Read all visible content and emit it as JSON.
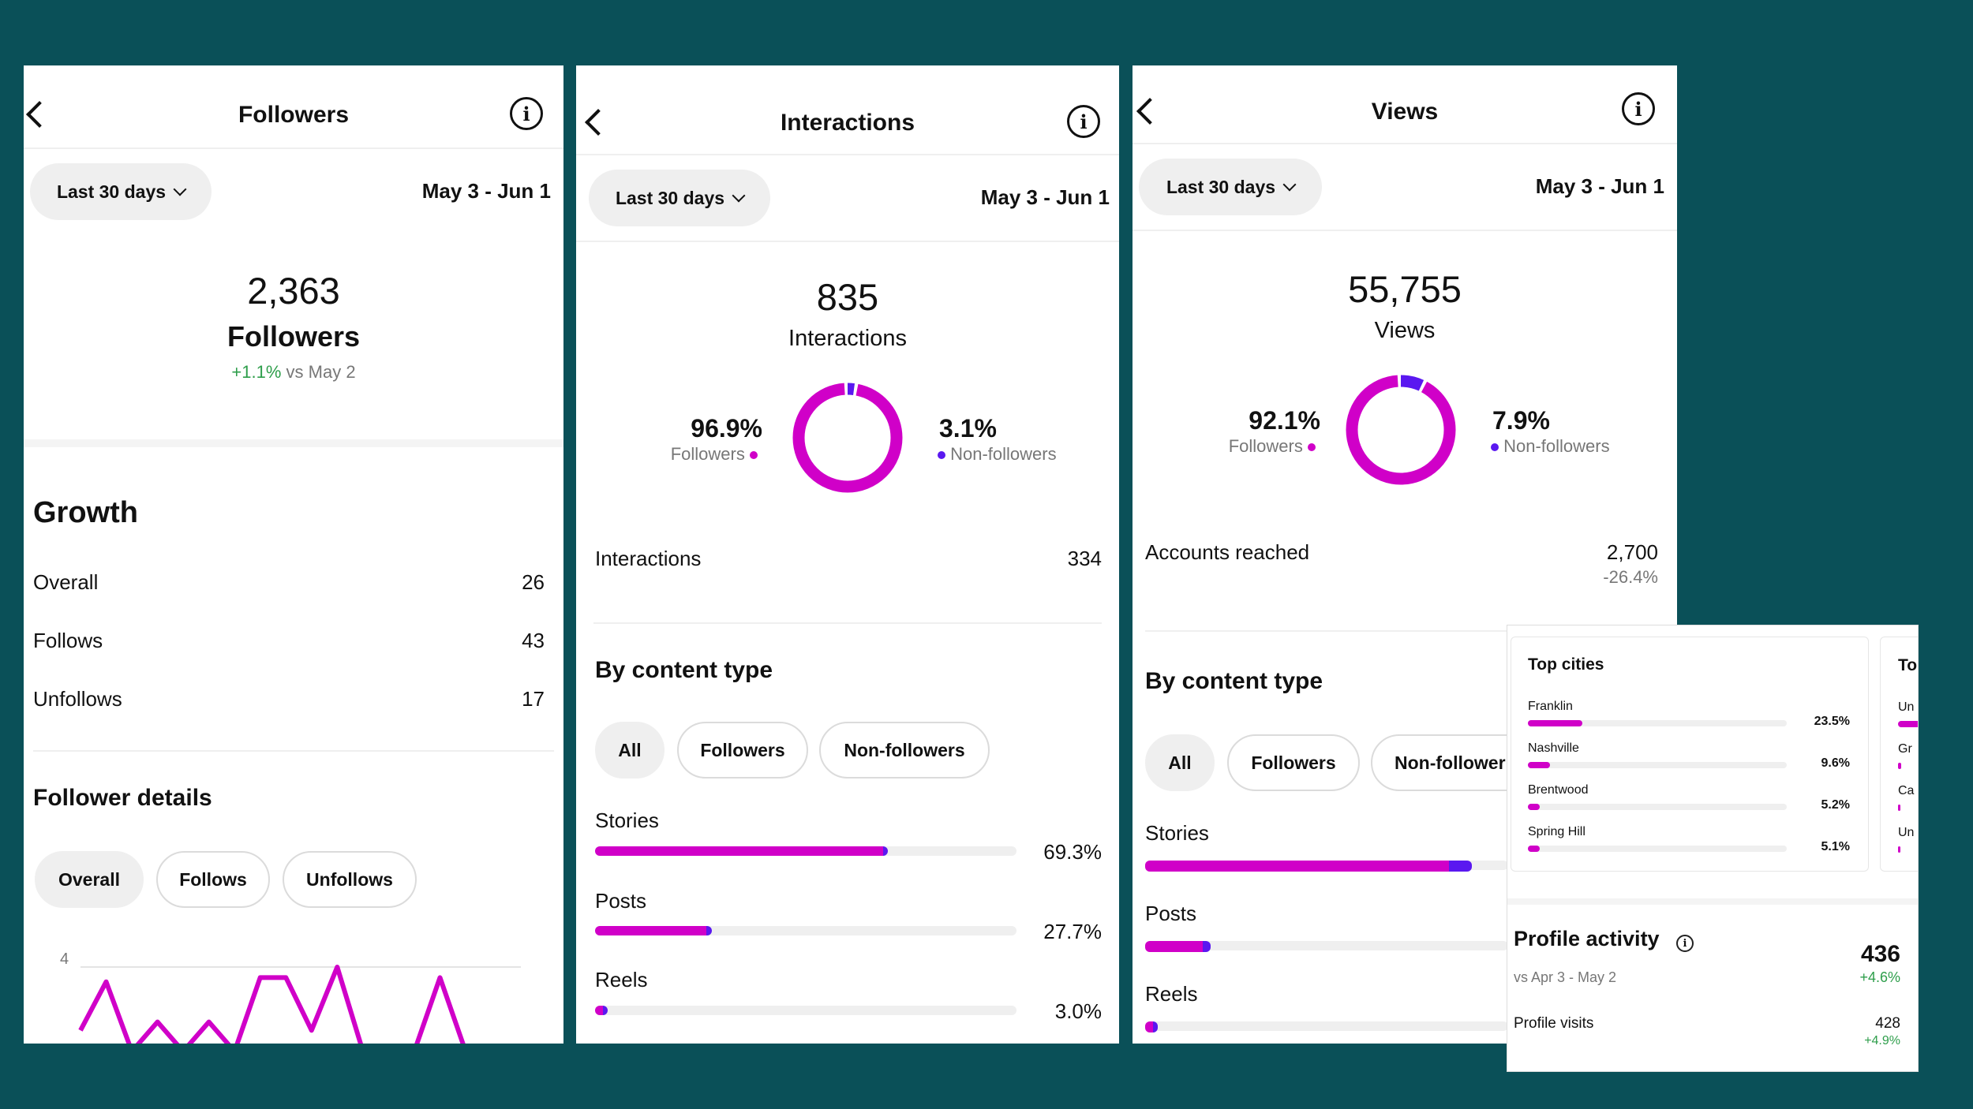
{
  "colors": {
    "background": "#0a5058",
    "followers": "#d000c8",
    "non_followers": "#5a18f0",
    "positive": "#2e9e4b"
  },
  "common": {
    "date_filter": "Last 30 days",
    "date_range": "May 3 - Jun 1"
  },
  "followers_screen": {
    "title": "Followers",
    "total": "2,363",
    "total_label": "Followers",
    "change": "+1.1%",
    "change_suffix": "vs May 2",
    "growth": {
      "title": "Growth",
      "rows": [
        {
          "label": "Overall",
          "value": "26"
        },
        {
          "label": "Follows",
          "value": "43"
        },
        {
          "label": "Unfollows",
          "value": "17"
        }
      ]
    },
    "details": {
      "title": "Follower details",
      "chips": [
        "Overall",
        "Follows",
        "Unfollows"
      ],
      "y_tick": "4"
    },
    "chart_data": {
      "type": "line",
      "title": "Follower details",
      "series": [
        {
          "name": "Overall",
          "values": [
            1,
            3.3,
            0,
            1.4,
            0,
            1.4,
            0,
            3.5,
            3.5,
            1,
            4,
            0,
            0,
            0,
            3.5,
            0
          ]
        }
      ],
      "ylim": [
        0,
        4
      ],
      "y_ticks": [
        4
      ]
    }
  },
  "interactions_screen": {
    "title": "Interactions",
    "total": "835",
    "total_label": "Interactions",
    "followers_pct": "96.9%",
    "followers_label": "Followers",
    "non_followers_pct": "3.1%",
    "non_followers_label": "Non-followers",
    "donut": {
      "followers_fraction": 0.969,
      "non_followers_fraction": 0.031
    },
    "interactions_row": {
      "label": "Interactions",
      "value": "334"
    },
    "content_type": {
      "title": "By content type",
      "chips": [
        "All",
        "Followers",
        "Non-followers"
      ],
      "items": [
        {
          "label": "Stories",
          "value": "69.3%",
          "fraction": 0.693,
          "followers_share": 0.985
        },
        {
          "label": "Posts",
          "value": "27.7%",
          "fraction": 0.277,
          "followers_share": 0.95
        },
        {
          "label": "Reels",
          "value": "3.0%",
          "fraction": 0.03,
          "followers_share": 0.6
        }
      ]
    }
  },
  "views_screen": {
    "title": "Views",
    "total": "55,755",
    "total_label": "Views",
    "followers_pct": "92.1%",
    "followers_label": "Followers",
    "non_followers_pct": "7.9%",
    "non_followers_label": "Non-followers",
    "donut": {
      "followers_fraction": 0.921,
      "non_followers_fraction": 0.079
    },
    "accounts_reached": {
      "label": "Accounts reached",
      "value": "2,700",
      "change": "-26.4%"
    },
    "content_type": {
      "title": "By content type",
      "chips": [
        "All",
        "Followers",
        "Non-follower"
      ],
      "items": [
        {
          "label": "Stories",
          "fraction": 0.9,
          "followers_share": 0.93
        },
        {
          "label": "Posts",
          "fraction": 0.18,
          "followers_share": 0.88
        },
        {
          "label": "Reels",
          "fraction": 0.035,
          "followers_share": 0.6
        }
      ]
    }
  },
  "overlay": {
    "top_cities": {
      "title": "Top cities",
      "items": [
        {
          "name": "Franklin",
          "value": "23.5%",
          "fraction": 0.235
        },
        {
          "name": "Nashville",
          "value": "9.6%",
          "fraction": 0.096
        },
        {
          "name": "Brentwood",
          "value": "5.2%",
          "fraction": 0.052
        },
        {
          "name": "Spring Hill",
          "value": "5.1%",
          "fraction": 0.051
        }
      ]
    },
    "second_card": {
      "title": "To",
      "items": [
        "Un",
        "Gr",
        "Ca",
        "Un"
      ]
    },
    "profile_activity": {
      "title": "Profile activity",
      "compare": "vs Apr 3 - May 2",
      "value": "436",
      "change": "+4.6%",
      "visits_label": "Profile visits",
      "visits_value": "428",
      "visits_change": "+4.9%"
    }
  }
}
